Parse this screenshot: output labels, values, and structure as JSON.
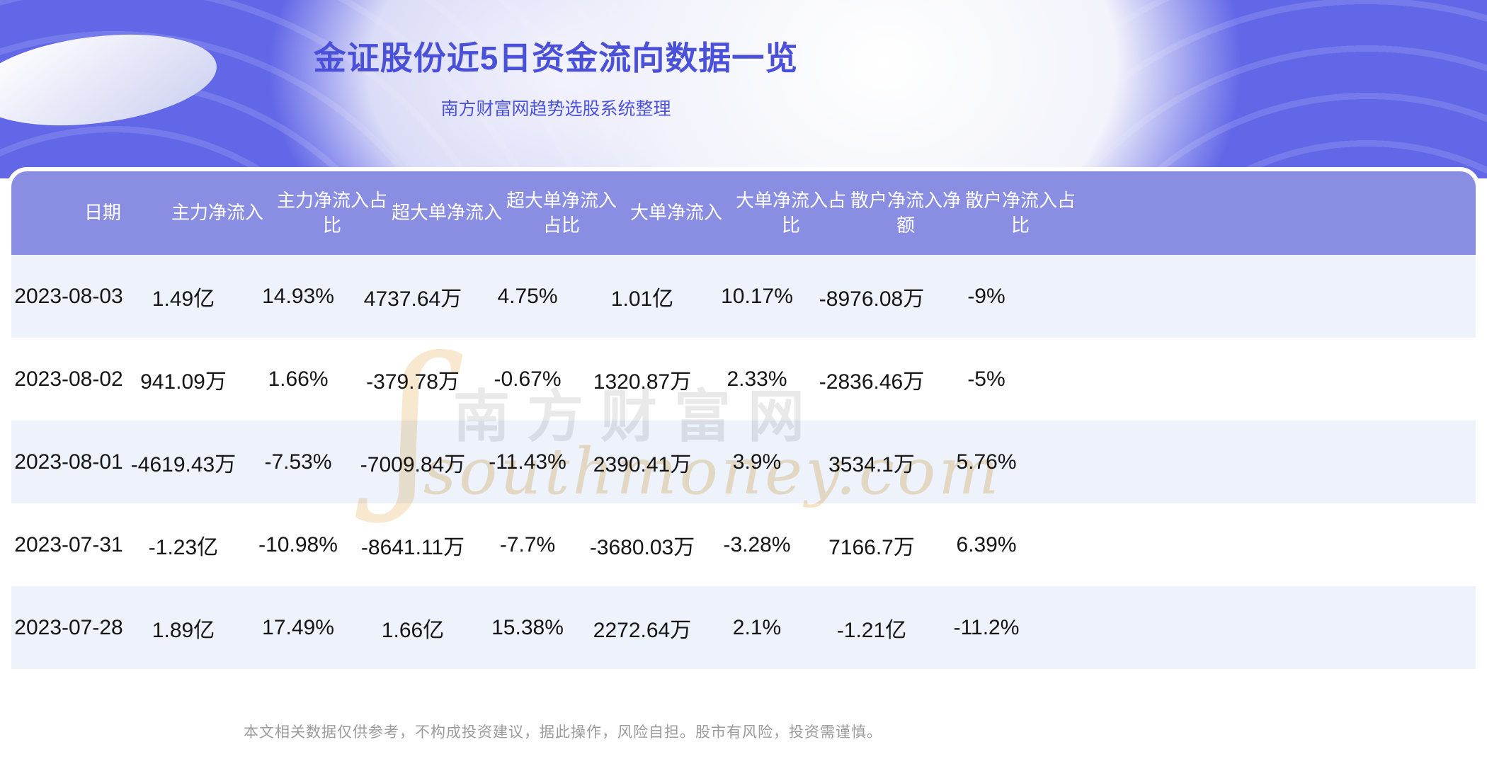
{
  "banner": {
    "title": "金证股份近5日资金流向数据一览",
    "subtitle": "南方财富网趋势选股系统整理"
  },
  "chart_data": {
    "type": "table",
    "title": "金证股份近5日资金流向数据一览",
    "columns": [
      "日期",
      "主力净流入",
      "主力净流入占比",
      "超大单净流入",
      "超大单净流入占比",
      "大单净流入",
      "大单净流入占比",
      "散户净流入净额",
      "散户净流入占比"
    ],
    "rows": [
      [
        "2023-08-03",
        "1.49亿",
        "14.93%",
        "4737.64万",
        "4.75%",
        "1.01亿",
        "10.17%",
        "-8976.08万",
        "-9%"
      ],
      [
        "2023-08-02",
        "941.09万",
        "1.66%",
        "-379.78万",
        "-0.67%",
        "1320.87万",
        "2.33%",
        "-2836.46万",
        "-5%"
      ],
      [
        "2023-08-01",
        "-4619.43万",
        "-7.53%",
        "-7009.84万",
        "-11.43%",
        "2390.41万",
        "3.9%",
        "3534.1万",
        "5.76%"
      ],
      [
        "2023-07-31",
        "-1.23亿",
        "-10.98%",
        "-8641.11万",
        "-7.7%",
        "-3680.03万",
        "-3.28%",
        "7166.7万",
        "6.39%"
      ],
      [
        "2023-07-28",
        "1.89亿",
        "17.49%",
        "1.66亿",
        "15.38%",
        "2272.64万",
        "2.1%",
        "-1.21亿",
        "-11.2%"
      ]
    ]
  },
  "watermark": {
    "line1": "南方财富网",
    "line2": "southmoney.com"
  },
  "footer": {
    "disclaimer": "本文相关数据仅供参考，不构成投资建议，据此操作，风险自担。股市有风险，投资需谨慎。"
  },
  "colors": {
    "accent": "#6267e8",
    "header_bg": "#8a8ee3",
    "row_alt": "#edf2fb",
    "title_text": "#4a50d8",
    "watermark_gray": "#e9e9e9",
    "watermark_tan": "#f4e3c6",
    "footer_gray": "#9b9b9b"
  }
}
